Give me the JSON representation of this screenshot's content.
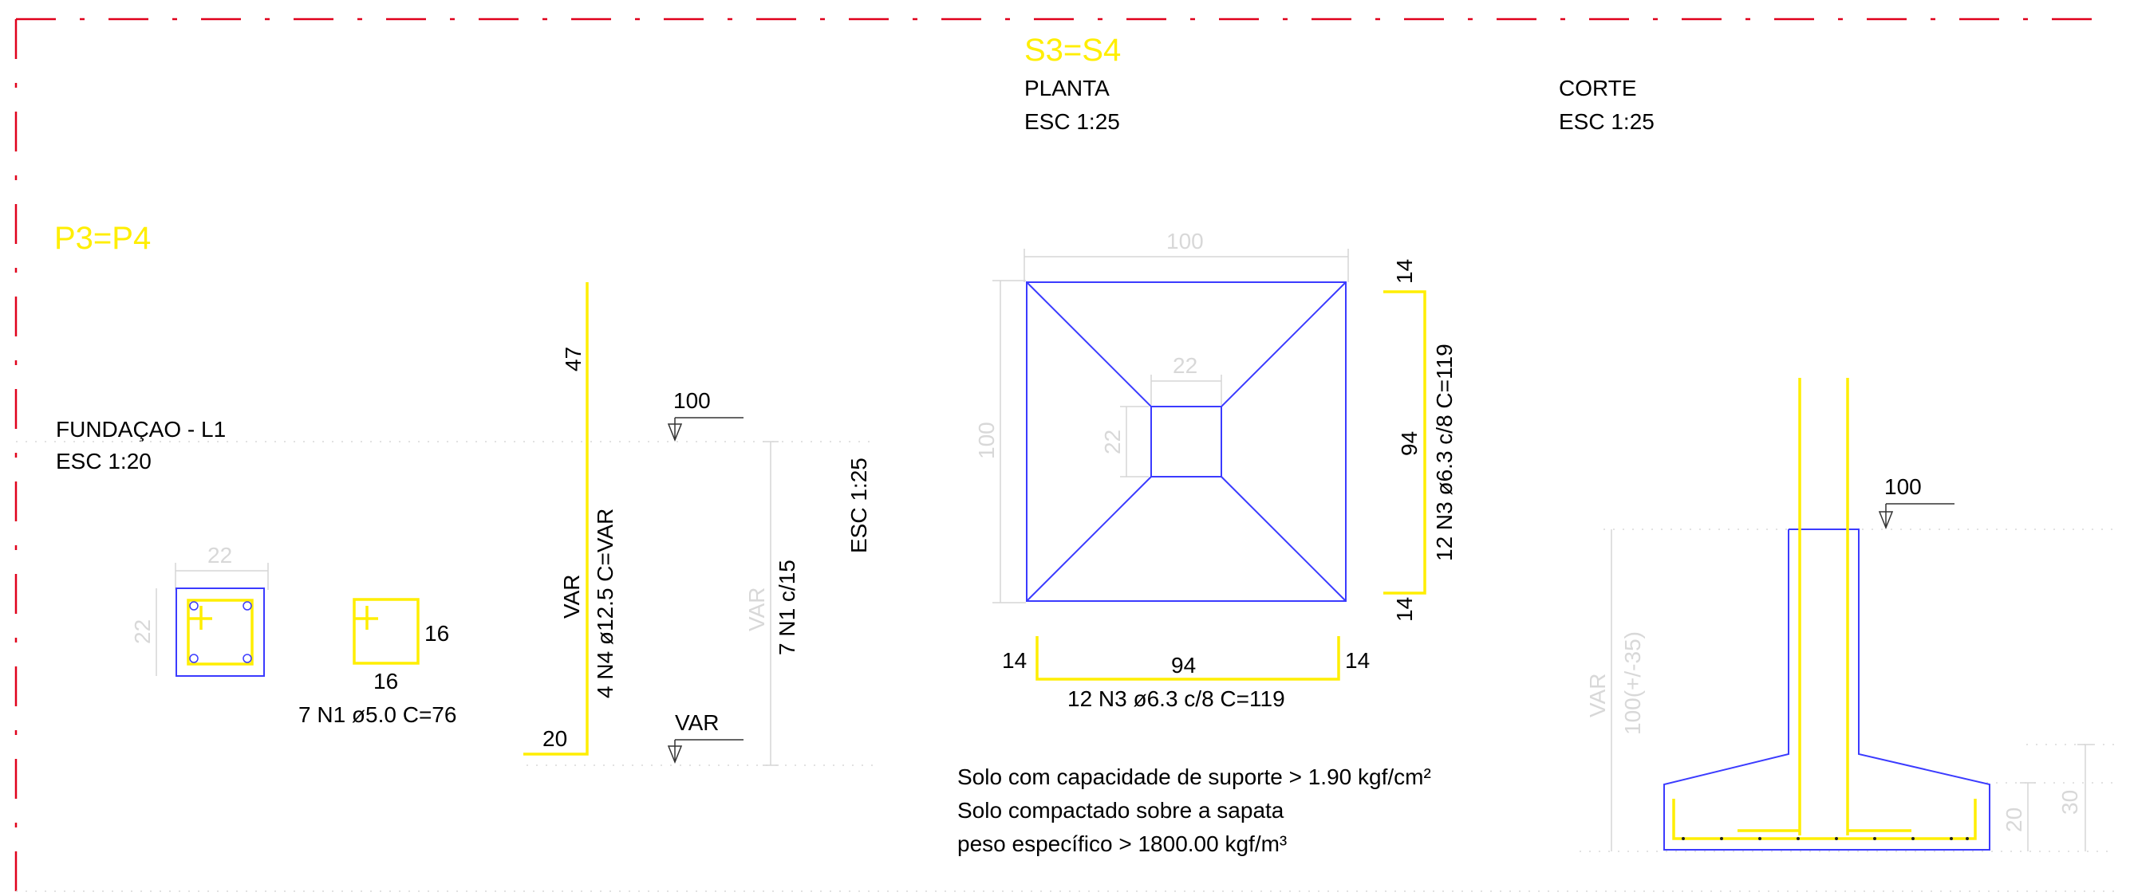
{
  "titles": {
    "s3s4": "S3=S4",
    "p3p4": "P3=P4"
  },
  "views": {
    "planta": {
      "label": "PLANTA",
      "scale": "ESC 1:25"
    },
    "corte": {
      "label": "CORTE",
      "scale": "ESC 1:25"
    },
    "fundacao": {
      "label": "FUNDAÇAO - L1",
      "scale": "ESC 1:20"
    },
    "side_scale": "ESC 1:25"
  },
  "pillar_section": {
    "dim_top": "22",
    "dim_left": "22",
    "stirrup_w": "16",
    "stirrup_h": "16",
    "stirrup_spec": "7 N1 ø5.0  C=76"
  },
  "pillar_elevation": {
    "bar_top": "47",
    "bar_hook": "20",
    "bar_label_var": "VAR",
    "bar_spec": "4 N4 ø12.5  C=VAR",
    "level_top": "100",
    "level_bottom": "VAR",
    "height_label": "VAR",
    "stirrups": "7 N1 c/15"
  },
  "footing_plan": {
    "width_top": "100",
    "height_left": "100",
    "pedestal_w": "22",
    "pedestal_h": "22",
    "right_bar_top": "14",
    "right_bar_mid": "94",
    "right_bar_bottom": "14",
    "right_bar_spec": "12 N3 ø6.3 c/8  C=119",
    "bottom_left": "14",
    "bottom_mid": "94",
    "bottom_right": "14",
    "bottom_spec": "12 N3 ø6.3 c/8  C=119"
  },
  "notes": [
    "Solo com capacidade de suporte > 1.90 kgf/cm²",
    "Solo compactado sobre a sapata",
    "peso específico > 1800.00 kgf/m³"
  ],
  "corte": {
    "level": "100",
    "left_label_var": "VAR",
    "left_label_height": "100(+/-35)",
    "dim_20": "20",
    "dim_30": "30"
  },
  "colors": {
    "title": "#ffee00",
    "outline": "#3b3bff",
    "border": "#e0001b",
    "dimension": "#d6d6d6"
  }
}
